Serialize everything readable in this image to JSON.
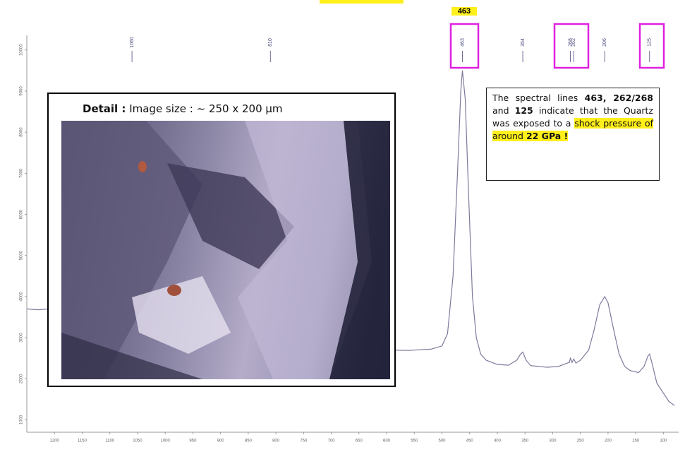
{
  "chart_data": {
    "type": "line",
    "x": [
      1250,
      1230,
      1210,
      1200,
      1100,
      1000,
      900,
      800,
      700,
      650,
      600,
      560,
      520,
      500,
      490,
      480,
      472,
      466,
      463,
      458,
      452,
      445,
      438,
      430,
      420,
      400,
      380,
      365,
      358,
      354,
      348,
      340,
      310,
      290,
      270,
      268,
      265,
      262,
      258,
      250,
      235,
      225,
      215,
      206,
      200,
      190,
      180,
      170,
      160,
      145,
      135,
      128,
      125,
      120,
      112,
      100,
      90,
      80
    ],
    "values": [
      3700,
      3680,
      3700,
      3650,
      3500,
      3300,
      3150,
      3000,
      2850,
      2780,
      2700,
      2690,
      2720,
      2800,
      3100,
      4500,
      7000,
      9000,
      9500,
      8800,
      6500,
      4000,
      3000,
      2600,
      2450,
      2350,
      2330,
      2450,
      2600,
      2650,
      2450,
      2320,
      2280,
      2300,
      2400,
      2500,
      2400,
      2480,
      2380,
      2450,
      2700,
      3200,
      3800,
      4000,
      3850,
      3200,
      2600,
      2300,
      2200,
      2150,
      2300,
      2550,
      2600,
      2350,
      1900,
      1650,
      1450,
      1350
    ],
    "color": "#7c7a9c",
    "xlim": [
      1250,
      75
    ],
    "ylim": [
      700,
      10700
    ],
    "xticks": [
      1200,
      1150,
      1100,
      1050,
      1000,
      950,
      900,
      850,
      800,
      750,
      700,
      650,
      600,
      550,
      500,
      450,
      400,
      350,
      300,
      250,
      200,
      150,
      100
    ],
    "yticks": [
      1000,
      2000,
      3000,
      4000,
      5000,
      6000,
      7000,
      8000,
      9000,
      10000
    ],
    "peaks": [
      1060,
      810,
      463,
      354,
      268,
      262,
      206,
      125
    ],
    "highlight_label": "463",
    "inset_title_bold": "Detail :",
    "inset_title": " Image size :  ~ 250 x 200 µm",
    "annotation": [
      "The spectral lines ",
      "463, 262/268",
      " and ",
      "125",
      " indicate that the Quartz was exposed to a ",
      "shock pressure of around ",
      "22 GPa !"
    ]
  }
}
